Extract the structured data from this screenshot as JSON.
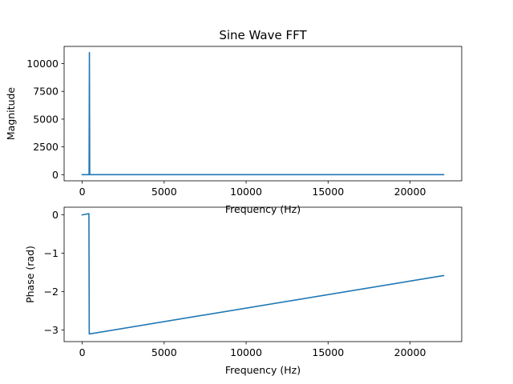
{
  "chart_data": [
    {
      "type": "line",
      "title": "Sine Wave FFT",
      "xlabel": "Frequency (Hz)",
      "ylabel": "Magnitude",
      "xlim": [
        -1102.5,
        23152.5
      ],
      "ylim": [
        -550,
        11550
      ],
      "xticks": [
        0,
        5000,
        10000,
        15000,
        20000
      ],
      "yticks": [
        0,
        2500,
        5000,
        7500,
        10000
      ],
      "grid": false,
      "series": [
        {
          "color": "#1f77b4",
          "x": [
            0,
            380,
            420,
            440,
            460,
            480,
            22050
          ],
          "y": [
            0,
            0,
            0,
            11000,
            0,
            0,
            0
          ]
        }
      ]
    },
    {
      "type": "line",
      "title": "",
      "xlabel": "Frequency (Hz)",
      "ylabel": "Phase (rad)",
      "xlim": [
        -1102.5,
        23152.5
      ],
      "ylim": [
        -3.3,
        0.2
      ],
      "xticks": [
        0,
        5000,
        10000,
        15000,
        20000
      ],
      "yticks": [
        0,
        -1,
        -2,
        -3
      ],
      "grid": false,
      "series": [
        {
          "color": "#1f77b4",
          "x": [
            0,
            370,
            410,
            430,
            450,
            22050
          ],
          "y": [
            0,
            0.03,
            0.03,
            -3.1,
            -3.1,
            -1.58
          ]
        }
      ]
    }
  ]
}
